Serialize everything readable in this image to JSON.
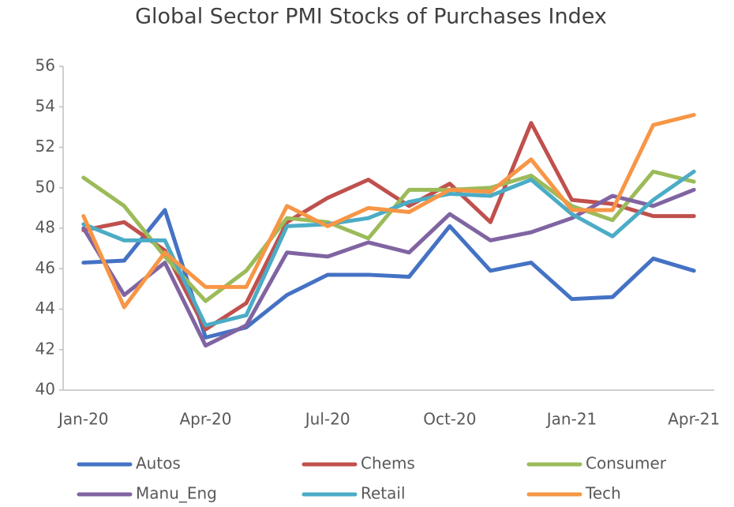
{
  "chart_data": {
    "type": "line",
    "title": "Global Sector PMI Stocks of Purchases Index",
    "categories": [
      "Jan-20",
      null,
      null,
      "Apr-20",
      null,
      null,
      "Jul-20",
      null,
      null,
      "Oct-20",
      null,
      null,
      "Jan-21",
      null,
      null,
      "Apr-21"
    ],
    "series": [
      {
        "name": "Autos",
        "color": "#4472c4",
        "values": [
          46.3,
          46.4,
          48.9,
          42.6,
          43.1,
          44.7,
          45.7,
          45.7,
          45.6,
          48.1,
          45.9,
          46.3,
          44.5,
          44.6,
          46.5,
          45.9
        ]
      },
      {
        "name": "Chems",
        "color": "#c0504d",
        "values": [
          47.9,
          48.3,
          46.9,
          43.0,
          44.3,
          48.3,
          49.5,
          50.4,
          49.1,
          50.2,
          48.3,
          53.2,
          49.4,
          49.2,
          48.6,
          48.6
        ]
      },
      {
        "name": "Consumer",
        "color": "#9bbb59",
        "values": [
          50.5,
          49.1,
          46.6,
          44.4,
          45.9,
          48.5,
          48.3,
          47.5,
          49.9,
          49.9,
          50.0,
          50.6,
          49.1,
          48.4,
          50.8,
          50.3
        ]
      },
      {
        "name": "Manu_Eng",
        "color": "#8064a2",
        "values": [
          48.0,
          44.7,
          46.3,
          42.2,
          43.2,
          46.8,
          46.6,
          47.3,
          46.8,
          48.7,
          47.4,
          47.8,
          48.5,
          49.6,
          49.1,
          49.9
        ]
      },
      {
        "name": "Retail",
        "color": "#4bacc6",
        "values": [
          48.2,
          47.4,
          47.4,
          43.2,
          43.7,
          48.1,
          48.2,
          48.5,
          49.3,
          49.7,
          49.6,
          50.4,
          48.7,
          47.6,
          49.4,
          50.8
        ]
      },
      {
        "name": "Tech",
        "color": "#f79646",
        "values": [
          48.6,
          44.1,
          46.8,
          45.1,
          45.1,
          49.1,
          48.1,
          49.0,
          48.8,
          49.9,
          49.8,
          51.4,
          48.9,
          48.9,
          53.1,
          53.6
        ]
      }
    ],
    "ylim": [
      40,
      56
    ],
    "yticks": [
      40,
      42,
      44,
      46,
      48,
      50,
      52,
      54,
      56
    ],
    "grid": false
  }
}
